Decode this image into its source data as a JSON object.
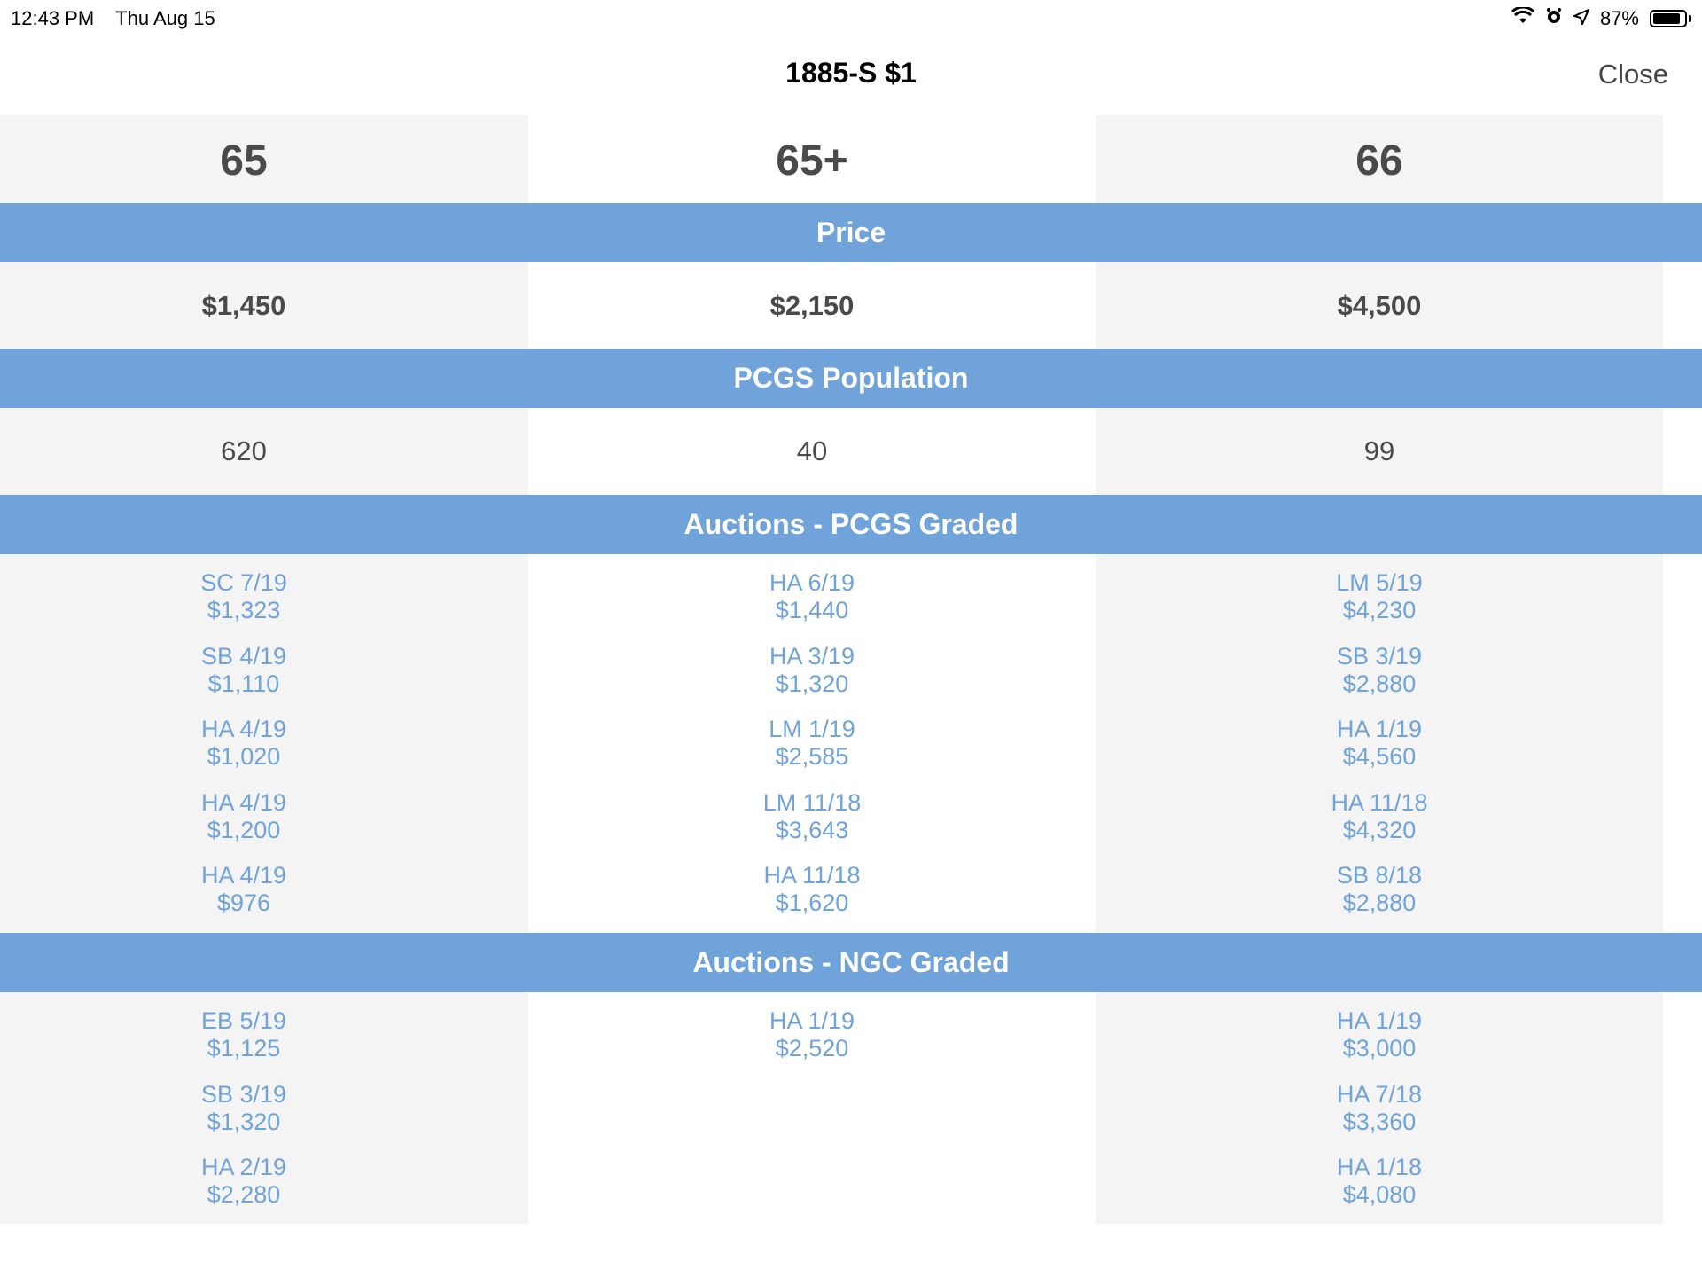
{
  "status_bar": {
    "time": "12:43 PM",
    "date": "Thu Aug 15",
    "battery_percent": "87%",
    "battery_level": 0.87
  },
  "nav": {
    "title": "1885-S $1",
    "close_label": "Close"
  },
  "grades": [
    "65",
    "65+",
    "66"
  ],
  "sections": {
    "price_label": "Price",
    "population_label": "PCGS Population",
    "pcgs_auctions_label": "Auctions - PCGS Graded",
    "ngc_auctions_label": "Auctions - NGC Graded"
  },
  "prices": [
    "$1,450",
    "$2,150",
    "$4,500"
  ],
  "population": [
    "620",
    "40",
    "99"
  ],
  "pcgs_auctions": [
    [
      {
        "date": "SC 7/19",
        "amount": "$1,323"
      },
      {
        "date": "SB 4/19",
        "amount": "$1,110"
      },
      {
        "date": "HA 4/19",
        "amount": "$1,020"
      },
      {
        "date": "HA 4/19",
        "amount": "$1,200"
      },
      {
        "date": "HA 4/19",
        "amount": "$976"
      }
    ],
    [
      {
        "date": "HA 6/19",
        "amount": "$1,440"
      },
      {
        "date": "HA 3/19",
        "amount": "$1,320"
      },
      {
        "date": "LM 1/19",
        "amount": "$2,585"
      },
      {
        "date": "LM 11/18",
        "amount": "$3,643"
      },
      {
        "date": "HA 11/18",
        "amount": "$1,620"
      }
    ],
    [
      {
        "date": "LM 5/19",
        "amount": "$4,230"
      },
      {
        "date": "SB 3/19",
        "amount": "$2,880"
      },
      {
        "date": "HA 1/19",
        "amount": "$4,560"
      },
      {
        "date": "HA 11/18",
        "amount": "$4,320"
      },
      {
        "date": "SB 8/18",
        "amount": "$2,880"
      }
    ]
  ],
  "ngc_auctions": [
    [
      {
        "date": "EB 5/19",
        "amount": "$1,125"
      },
      {
        "date": "SB 3/19",
        "amount": "$1,320"
      },
      {
        "date": "HA 2/19",
        "amount": "$2,280"
      }
    ],
    [
      {
        "date": "HA 1/19",
        "amount": "$2,520"
      }
    ],
    [
      {
        "date": "HA 1/19",
        "amount": "$3,000"
      },
      {
        "date": "HA 7/18",
        "amount": "$3,360"
      },
      {
        "date": "HA 1/18",
        "amount": "$4,080"
      }
    ]
  ],
  "colors": {
    "band": "#6fa3da",
    "link": "#6fa3da",
    "shaded_column": "#f4f4f4"
  }
}
